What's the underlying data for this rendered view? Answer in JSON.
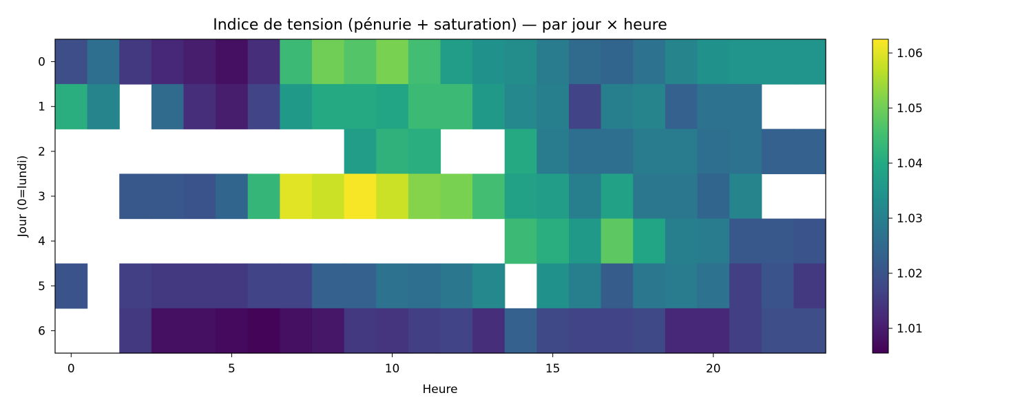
{
  "chart_data": {
    "type": "heatmap",
    "title": "Indice de tension (pénurie + saturation) — par jour × heure",
    "xlabel": "Heure",
    "ylabel": "Jour (0=lundi)",
    "x_ticks": [
      0,
      5,
      10,
      15,
      20
    ],
    "y_ticks": [
      0,
      1,
      2,
      3,
      4,
      5,
      6
    ],
    "colormap": "viridis",
    "colorbar": {
      "vmin": 1.0055,
      "vmax": 1.0625,
      "ticks": [
        1.01,
        1.02,
        1.03,
        1.04,
        1.05,
        1.06
      ],
      "tick_labels": [
        "1.01",
        "1.02",
        "1.03",
        "1.04",
        "1.05",
        "1.06"
      ]
    },
    "hours": [
      0,
      1,
      2,
      3,
      4,
      5,
      6,
      7,
      8,
      9,
      10,
      11,
      12,
      13,
      14,
      15,
      16,
      17,
      18,
      19,
      20,
      21,
      22,
      23
    ],
    "days": [
      0,
      1,
      2,
      3,
      4,
      5,
      6
    ],
    "values": [
      [
        1.019,
        1.026,
        1.015,
        1.012,
        1.01,
        1.008,
        1.013,
        1.044,
        1.05,
        1.047,
        1.051,
        1.045,
        1.037,
        1.034,
        1.033,
        1.029,
        1.025,
        1.024,
        1.027,
        1.031,
        1.034,
        1.035,
        1.035,
        1.035
      ],
      [
        1.041,
        1.031,
        null,
        1.025,
        1.013,
        1.01,
        1.017,
        1.036,
        1.04,
        1.04,
        1.039,
        1.044,
        1.044,
        1.036,
        1.032,
        1.03,
        1.017,
        1.03,
        1.031,
        1.023,
        1.027,
        1.027,
        null,
        null
      ],
      [
        null,
        null,
        null,
        null,
        null,
        null,
        null,
        null,
        null,
        1.037,
        1.042,
        1.041,
        null,
        null,
        1.04,
        1.029,
        1.026,
        1.026,
        1.029,
        1.029,
        1.026,
        1.027,
        1.023,
        1.023
      ],
      [
        null,
        null,
        1.021,
        1.021,
        1.02,
        1.024,
        1.043,
        1.06,
        1.058,
        1.062,
        1.058,
        1.052,
        1.051,
        1.045,
        1.038,
        1.037,
        1.03,
        1.038,
        1.028,
        1.028,
        1.024,
        1.031,
        null,
        null
      ],
      [
        null,
        null,
        null,
        null,
        null,
        null,
        null,
        null,
        null,
        null,
        null,
        null,
        null,
        null,
        1.044,
        1.041,
        1.036,
        1.048,
        1.039,
        1.03,
        1.029,
        1.021,
        1.021,
        1.02
      ],
      [
        1.02,
        null,
        1.016,
        1.015,
        1.015,
        1.015,
        1.017,
        1.017,
        1.023,
        1.023,
        1.027,
        1.026,
        1.028,
        1.032,
        null,
        1.034,
        1.03,
        1.022,
        1.028,
        1.029,
        1.027,
        1.016,
        1.02,
        1.015
      ],
      [
        null,
        null,
        1.015,
        1.008,
        1.008,
        1.007,
        1.006,
        1.008,
        1.009,
        1.015,
        1.014,
        1.016,
        1.017,
        1.013,
        1.023,
        1.018,
        1.017,
        1.017,
        1.018,
        1.012,
        1.012,
        1.016,
        1.019,
        1.019
      ]
    ]
  }
}
